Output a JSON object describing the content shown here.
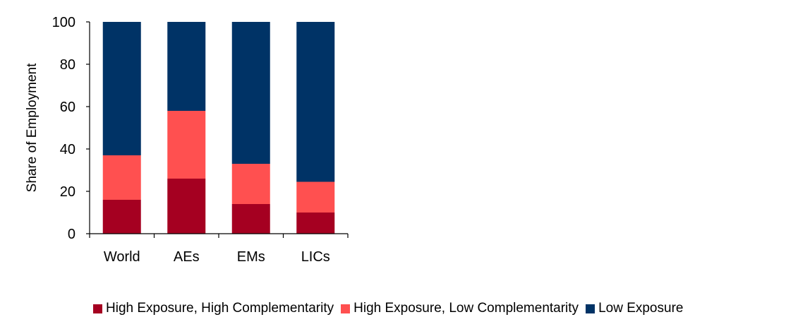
{
  "chart_data": {
    "type": "bar",
    "stacked": true,
    "title": "",
    "xlabel": "",
    "ylabel": "Share of Employment",
    "ylim": [
      0,
      100
    ],
    "yticks": [
      0,
      20,
      40,
      60,
      80,
      100
    ],
    "categories": [
      "World",
      "AEs",
      "EMs",
      "LICs"
    ],
    "series": [
      {
        "name": "High Exposure, High Complementarity",
        "color": "#a50021",
        "values": [
          16,
          26,
          14,
          10
        ]
      },
      {
        "name": "High Exposure, Low Complementarity",
        "color": "#ff5050",
        "values": [
          21,
          32,
          19,
          14.5
        ]
      },
      {
        "name": "Low Exposure",
        "color": "#003366",
        "values": [
          63,
          42,
          67,
          75.5
        ]
      }
    ],
    "grid": false,
    "legend_position": "bottom"
  }
}
